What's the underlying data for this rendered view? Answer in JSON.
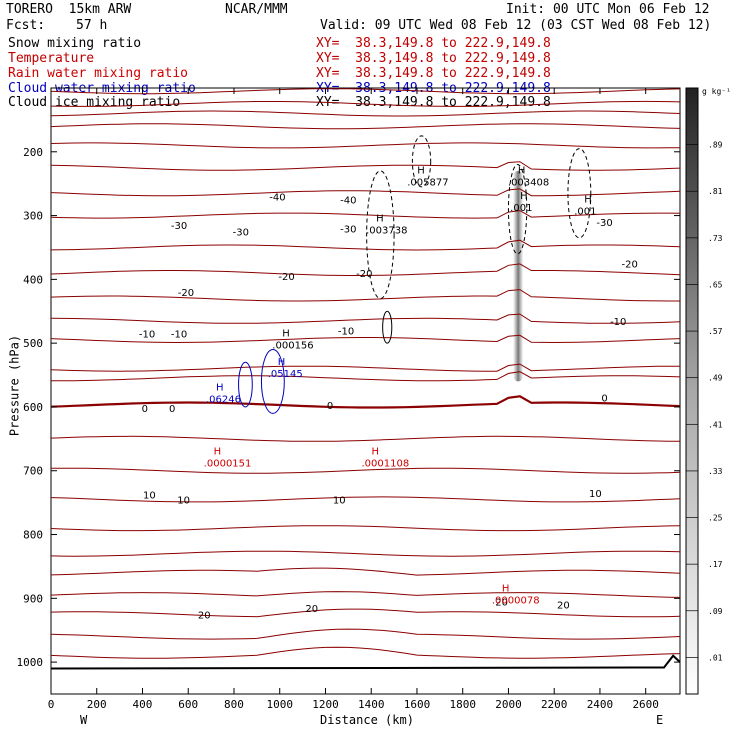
{
  "header": {
    "model": "TORERO  15km ARW",
    "center": "NCAR/MMM",
    "init": "Init: 00 UTC Mon 06 Feb 12",
    "fcst_label": "Fcst:",
    "fcst_value": "57 h",
    "valid": "Valid: 09 UTC Wed 08 Feb 12 (03 CST Wed 08 Feb 12)"
  },
  "legend": [
    {
      "name": "Snow mixing ratio",
      "color": "#000000",
      "xy": "XY=  38.3,149.8 to 222.9,149.8"
    },
    {
      "name": "Temperature",
      "color": "#c00000",
      "xy": "XY=  38.3,149.8 to 222.9,149.8"
    },
    {
      "name": "Rain water mixing ratio",
      "color": "#d00000",
      "xy": "XY=  38.3,149.8 to 222.9,149.8"
    },
    {
      "name": "Cloud water mixing ratio",
      "color": "#0000c0",
      "xy": "XY=  38.3,149.8 to 222.9,149.8"
    },
    {
      "name": "Cloud ice mixing ratio",
      "color": "#000000",
      "xy": "XY=  38.3,149.8 to 222.9,149.8"
    }
  ],
  "chart_data": {
    "type": "contour",
    "xlabel": "Distance (km)",
    "ylabel": "Pressure (hPa)",
    "xlim": [
      0,
      2750
    ],
    "ylim": [
      1050,
      100
    ],
    "x_ticks": [
      "0",
      "200",
      "400",
      "600",
      "800",
      "1000",
      "1200",
      "1400",
      "1600",
      "1800",
      "2000",
      "2200",
      "2400",
      "2600"
    ],
    "y_ticks": [
      "200",
      "300",
      "400",
      "500",
      "600",
      "700",
      "800",
      "900",
      "1000"
    ],
    "x_end_labels": {
      "left": "W",
      "right": "E"
    },
    "colorbar": {
      "unit": "g kg⁻¹",
      "labels": [
        ".89",
        ".81",
        ".73",
        ".65",
        ".57",
        ".49",
        ".41",
        ".33",
        ".25",
        ".17",
        ".09",
        ".01"
      ]
    },
    "temperature_contour_labels": [
      {
        "text": "-40",
        "x": 990,
        "p": 270
      },
      {
        "text": "-40",
        "x": 1300,
        "p": 275
      },
      {
        "text": "-30",
        "x": 560,
        "p": 315
      },
      {
        "text": "-30",
        "x": 830,
        "p": 325
      },
      {
        "text": "-30",
        "x": 1300,
        "p": 320
      },
      {
        "text": "-30",
        "x": 2420,
        "p": 310
      },
      {
        "text": "-20",
        "x": 590,
        "p": 420
      },
      {
        "text": "-20",
        "x": 1030,
        "p": 395
      },
      {
        "text": "-20",
        "x": 1370,
        "p": 390
      },
      {
        "text": "-20",
        "x": 2530,
        "p": 375
      },
      {
        "text": "-10",
        "x": 420,
        "p": 485
      },
      {
        "text": "-10",
        "x": 560,
        "p": 485
      },
      {
        "text": "-10",
        "x": 1290,
        "p": 480
      },
      {
        "text": "-10",
        "x": 2480,
        "p": 465
      },
      {
        "text": "0",
        "x": 410,
        "p": 602
      },
      {
        "text": "0",
        "x": 530,
        "p": 602
      },
      {
        "text": "0",
        "x": 1220,
        "p": 597
      },
      {
        "text": "0",
        "x": 2420,
        "p": 585
      },
      {
        "text": "10",
        "x": 430,
        "p": 737
      },
      {
        "text": "10",
        "x": 580,
        "p": 745
      },
      {
        "text": "10",
        "x": 1260,
        "p": 745
      },
      {
        "text": "10",
        "x": 2380,
        "p": 735
      },
      {
        "text": "20",
        "x": 670,
        "p": 925
      },
      {
        "text": "20",
        "x": 1140,
        "p": 915
      },
      {
        "text": "20",
        "x": 1970,
        "p": 905
      },
      {
        "text": "20",
        "x": 2240,
        "p": 910
      }
    ],
    "maxima_labels": [
      {
        "kind": "snow",
        "text": ".005877",
        "x": 1610,
        "p": 250
      },
      {
        "kind": "snow",
        "text": ".003408",
        "x": 2050,
        "p": 250
      },
      {
        "kind": "snow",
        "text": ".003738",
        "x": 1430,
        "p": 325
      },
      {
        "kind": "snow",
        "text": ".001",
        "x": 2060,
        "p": 290
      },
      {
        "kind": "snow",
        "text": ".001",
        "x": 2340,
        "p": 295
      },
      {
        "kind": "ice",
        "text": ".000156",
        "x": 1020,
        "p": 505
      },
      {
        "kind": "cloud_water",
        "text": ".05145",
        "x": 1000,
        "p": 550
      },
      {
        "kind": "cloud_water",
        "text": ".06246",
        "x": 730,
        "p": 590
      },
      {
        "kind": "rain",
        "text": ".0000151",
        "x": 720,
        "p": 690
      },
      {
        "kind": "rain",
        "text": ".0001108",
        "x": 1410,
        "p": 690
      },
      {
        "kind": "rain",
        "text": ".0000078",
        "x": 1980,
        "p": 905
      }
    ]
  }
}
